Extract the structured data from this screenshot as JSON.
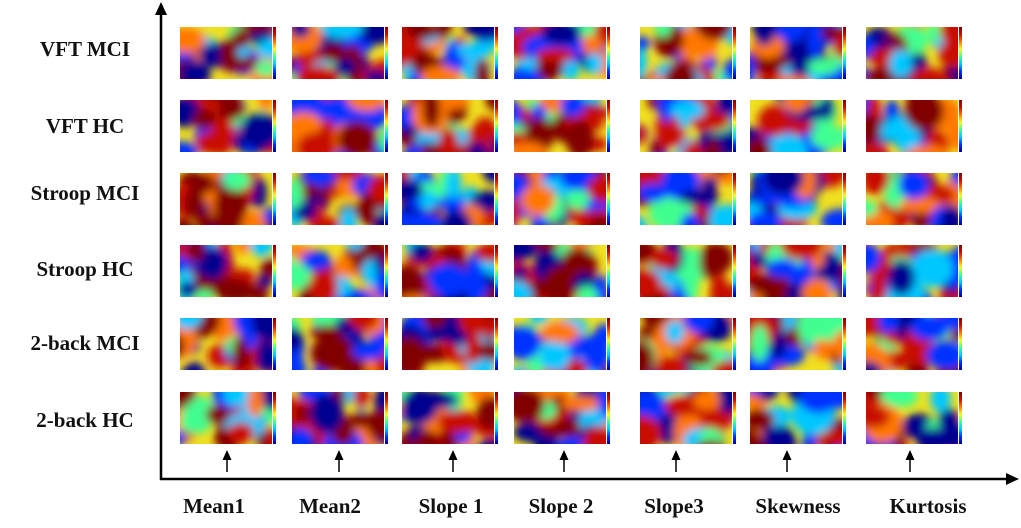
{
  "rows": [
    "VFT MCI",
    "VFT HC",
    "Stroop MCI",
    "Stroop HC",
    "2-back MCI",
    "2-back HC"
  ],
  "columns": [
    "Mean1",
    "Mean2",
    "Slope 1",
    "Slope 2",
    "Slope3",
    "Skewness",
    "Kurtosis"
  ],
  "colormap": [
    "#00008f",
    "#0030ff",
    "#00c8ff",
    "#40ff90",
    "#f0ff20",
    "#ff7800",
    "#c81000",
    "#800000"
  ],
  "axis_color": "#000000"
}
